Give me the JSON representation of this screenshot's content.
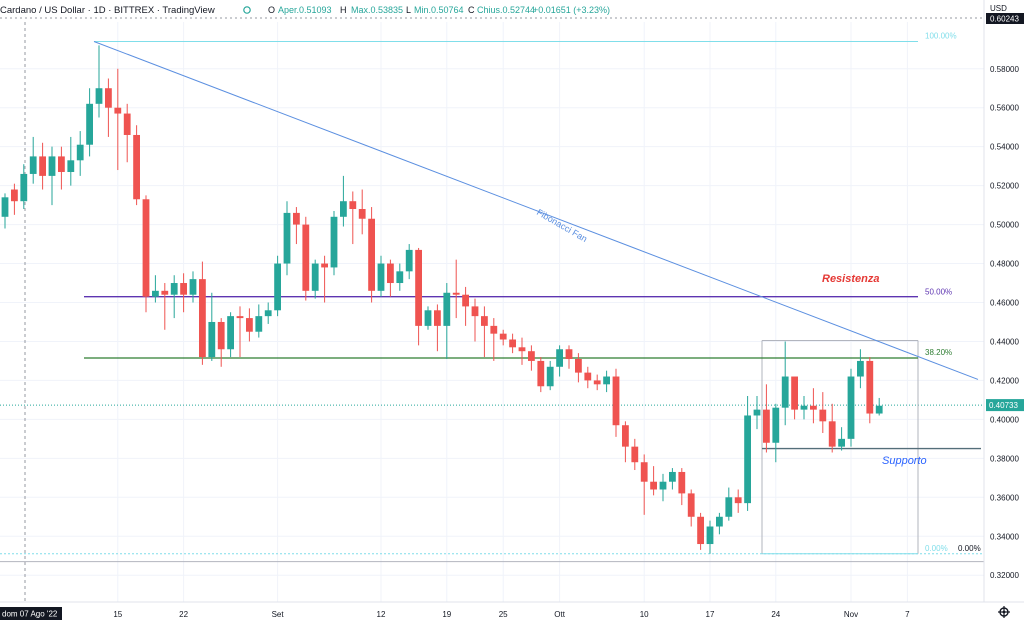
{
  "header": {
    "symbol": "Cardano / US Dollar · 1D · BITTREX · TradingView",
    "open_label": "O",
    "open_text": "Aper.0.51093",
    "high_label": "H",
    "high_text": "Max.0.53835",
    "low_label": "L",
    "low_text": "Min.0.50764",
    "close_label": "C",
    "close_text": "Chius.0.52744",
    "change_text": "+0.01651 (+3.23%)"
  },
  "currency": "USD",
  "date_badge": "dom 07 Ago '22",
  "colors": {
    "up": "#26a69a",
    "down": "#ef5350",
    "support_label": "#2962ff",
    "resistance_label": "#e53935",
    "fan": "#5b8fe0",
    "resistance_line": "#5e35b1",
    "fib_382": "#2e7d32",
    "price_badge": "#26a69a",
    "top_badge": "#131722"
  },
  "chart_data": {
    "type": "candlestick",
    "title": "Cardano / US Dollar",
    "ylabel": "USD",
    "ylim": [
      0.316,
      0.604
    ],
    "y_ticks": [
      "0.58000",
      "0.56000",
      "0.54000",
      "0.52000",
      "0.50000",
      "0.48000",
      "0.46000",
      "0.44000",
      "0.42000",
      "0.40000",
      "0.38000",
      "0.36000",
      "0.34000",
      "0.32000"
    ],
    "y_tick_values": [
      0.58,
      0.56,
      0.54,
      0.52,
      0.5,
      0.48,
      0.46,
      0.44,
      0.42,
      0.4,
      0.38,
      0.36,
      0.34,
      0.32
    ],
    "x_ticks": [
      {
        "label": "15",
        "idx": 12
      },
      {
        "label": "22",
        "idx": 19
      },
      {
        "label": "Set",
        "idx": 29
      },
      {
        "label": "12",
        "idx": 40
      },
      {
        "label": "19",
        "idx": 47
      },
      {
        "label": "25",
        "idx": 53
      },
      {
        "label": "Ott",
        "idx": 59
      },
      {
        "label": "10",
        "idx": 68
      },
      {
        "label": "17",
        "idx": 75
      },
      {
        "label": "24",
        "idx": 82
      },
      {
        "label": "Nov",
        "idx": 90
      },
      {
        "label": "7",
        "idx": 96
      }
    ],
    "candles": [
      [
        0.504,
        0.514,
        0.498,
        0.516
      ],
      [
        0.518,
        0.512,
        0.505,
        0.521
      ],
      [
        0.512,
        0.526,
        0.508,
        0.531
      ],
      [
        0.526,
        0.535,
        0.521,
        0.545
      ],
      [
        0.535,
        0.525,
        0.518,
        0.542
      ],
      [
        0.525,
        0.535,
        0.51,
        0.54
      ],
      [
        0.535,
        0.527,
        0.518,
        0.54
      ],
      [
        0.527,
        0.533,
        0.52,
        0.545
      ],
      [
        0.533,
        0.541,
        0.525,
        0.548
      ],
      [
        0.541,
        0.562,
        0.535,
        0.57
      ],
      [
        0.562,
        0.57,
        0.555,
        0.592
      ],
      [
        0.57,
        0.56,
        0.545,
        0.575
      ],
      [
        0.56,
        0.557,
        0.528,
        0.58
      ],
      [
        0.557,
        0.546,
        0.532,
        0.562
      ],
      [
        0.546,
        0.513,
        0.51,
        0.551
      ],
      [
        0.513,
        0.463,
        0.455,
        0.515
      ],
      [
        0.463,
        0.466,
        0.46,
        0.474
      ],
      [
        0.466,
        0.464,
        0.446,
        0.47
      ],
      [
        0.464,
        0.47,
        0.452,
        0.474
      ],
      [
        0.47,
        0.464,
        0.455,
        0.475
      ],
      [
        0.464,
        0.472,
        0.46,
        0.476
      ],
      [
        0.472,
        0.432,
        0.428,
        0.481
      ],
      [
        0.432,
        0.45,
        0.43,
        0.465
      ],
      [
        0.45,
        0.436,
        0.427,
        0.452
      ],
      [
        0.436,
        0.453,
        0.432,
        0.455
      ],
      [
        0.453,
        0.452,
        0.432,
        0.458
      ],
      [
        0.452,
        0.445,
        0.44,
        0.457
      ],
      [
        0.445,
        0.453,
        0.442,
        0.459
      ],
      [
        0.453,
        0.456,
        0.449,
        0.46
      ],
      [
        0.456,
        0.48,
        0.453,
        0.484
      ],
      [
        0.48,
        0.506,
        0.474,
        0.512
      ],
      [
        0.506,
        0.5,
        0.49,
        0.509
      ],
      [
        0.5,
        0.466,
        0.461,
        0.504
      ],
      [
        0.466,
        0.48,
        0.462,
        0.482
      ],
      [
        0.48,
        0.478,
        0.46,
        0.484
      ],
      [
        0.478,
        0.504,
        0.474,
        0.507
      ],
      [
        0.504,
        0.512,
        0.499,
        0.525
      ],
      [
        0.512,
        0.508,
        0.49,
        0.517
      ],
      [
        0.508,
        0.503,
        0.495,
        0.518
      ],
      [
        0.503,
        0.466,
        0.46,
        0.509
      ],
      [
        0.466,
        0.48,
        0.463,
        0.484
      ],
      [
        0.48,
        0.47,
        0.463,
        0.482
      ],
      [
        0.47,
        0.476,
        0.466,
        0.48
      ],
      [
        0.476,
        0.487,
        0.472,
        0.49
      ],
      [
        0.487,
        0.448,
        0.438,
        0.488
      ],
      [
        0.448,
        0.456,
        0.446,
        0.458
      ],
      [
        0.456,
        0.448,
        0.435,
        0.459
      ],
      [
        0.448,
        0.465,
        0.431,
        0.47
      ],
      [
        0.465,
        0.464,
        0.452,
        0.482
      ],
      [
        0.464,
        0.458,
        0.448,
        0.468
      ],
      [
        0.458,
        0.453,
        0.44,
        0.462
      ],
      [
        0.453,
        0.448,
        0.432,
        0.458
      ],
      [
        0.448,
        0.444,
        0.43,
        0.452
      ],
      [
        0.444,
        0.441,
        0.438,
        0.446
      ],
      [
        0.441,
        0.437,
        0.434,
        0.444
      ],
      [
        0.437,
        0.435,
        0.428,
        0.442
      ],
      [
        0.435,
        0.43,
        0.425,
        0.438
      ],
      [
        0.43,
        0.417,
        0.414,
        0.432
      ],
      [
        0.417,
        0.427,
        0.415,
        0.43
      ],
      [
        0.427,
        0.436,
        0.422,
        0.438
      ],
      [
        0.436,
        0.431,
        0.426,
        0.438
      ],
      [
        0.431,
        0.424,
        0.419,
        0.434
      ],
      [
        0.424,
        0.42,
        0.416,
        0.427
      ],
      [
        0.42,
        0.418,
        0.415,
        0.423
      ],
      [
        0.418,
        0.422,
        0.414,
        0.425
      ],
      [
        0.422,
        0.397,
        0.391,
        0.426
      ],
      [
        0.397,
        0.386,
        0.378,
        0.399
      ],
      [
        0.386,
        0.378,
        0.374,
        0.39
      ],
      [
        0.378,
        0.368,
        0.351,
        0.382
      ],
      [
        0.368,
        0.364,
        0.361,
        0.376
      ],
      [
        0.364,
        0.368,
        0.358,
        0.372
      ],
      [
        0.368,
        0.373,
        0.364,
        0.375
      ],
      [
        0.373,
        0.362,
        0.356,
        0.375
      ],
      [
        0.362,
        0.35,
        0.345,
        0.364
      ],
      [
        0.35,
        0.336,
        0.333,
        0.352
      ],
      [
        0.336,
        0.345,
        0.331,
        0.348
      ],
      [
        0.345,
        0.35,
        0.341,
        0.352
      ],
      [
        0.35,
        0.36,
        0.348,
        0.365
      ],
      [
        0.36,
        0.357,
        0.352,
        0.364
      ],
      [
        0.357,
        0.402,
        0.353,
        0.412
      ],
      [
        0.402,
        0.405,
        0.395,
        0.412
      ],
      [
        0.405,
        0.388,
        0.383,
        0.418
      ],
      [
        0.388,
        0.406,
        0.378,
        0.408
      ],
      [
        0.406,
        0.422,
        0.397,
        0.44
      ],
      [
        0.422,
        0.405,
        0.4,
        0.421
      ],
      [
        0.405,
        0.407,
        0.4,
        0.412
      ],
      [
        0.407,
        0.405,
        0.398,
        0.416
      ],
      [
        0.405,
        0.399,
        0.393,
        0.414
      ],
      [
        0.399,
        0.386,
        0.383,
        0.408
      ],
      [
        0.386,
        0.39,
        0.384,
        0.396
      ],
      [
        0.39,
        0.422,
        0.386,
        0.426
      ],
      [
        0.422,
        0.43,
        0.416,
        0.436
      ],
      [
        0.43,
        0.403,
        0.398,
        0.432
      ],
      [
        0.403,
        0.407,
        0.402,
        0.411
      ]
    ],
    "last_price": 0.40733,
    "top_price": 0.60243,
    "annotations": {
      "fan_label": "Fibonacci Fan",
      "resistance_label": "Resistenza",
      "support_label": "Supporto",
      "resistance_price": 0.463,
      "fib_382_price": 0.4315,
      "support_price": 0.385,
      "fib_levels": [
        {
          "label": "100.00%",
          "price": 0.594
        },
        {
          "label": "50.00%",
          "price": 0.4626
        },
        {
          "label": "38.20%",
          "price": 0.4315
        },
        {
          "label": "0.00%",
          "price": 0.331
        }
      ],
      "bottom_zero_label": "0.00%"
    }
  }
}
